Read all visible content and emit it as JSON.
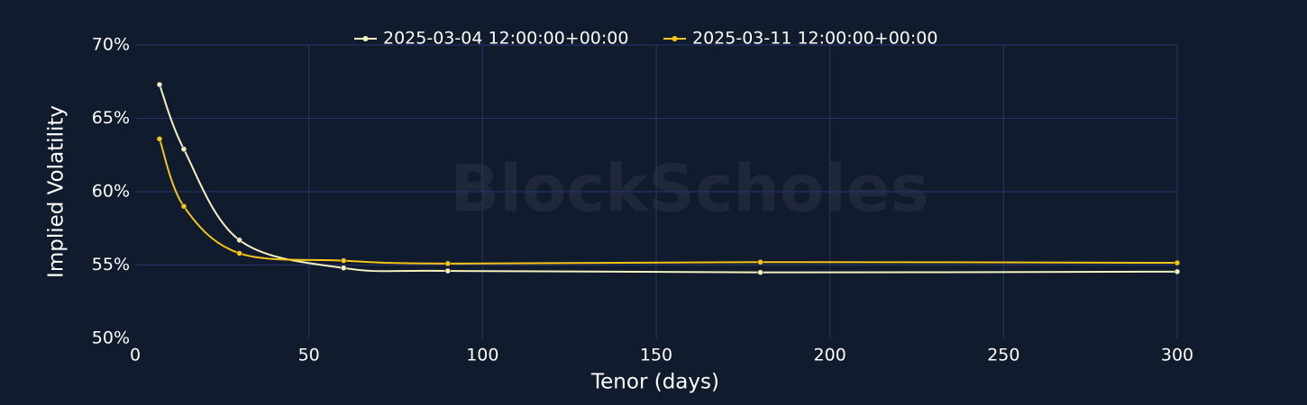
{
  "chart_data": {
    "type": "line",
    "watermark": "BlockScholes",
    "x_label": "Tenor (days)",
    "y_label": "Implied Volatility",
    "x": [
      7,
      14,
      30,
      60,
      90,
      180,
      300
    ],
    "series": [
      {
        "name": "2025-03-04 12:00:00+00:00",
        "color": "#f3f0c0",
        "values": [
          67.3,
          62.9,
          56.7,
          54.8,
          54.6,
          54.5,
          54.55
        ]
      },
      {
        "name": "2025-03-11 12:00:00+00:00",
        "color": "#f5c518",
        "values": [
          63.6,
          59.0,
          55.8,
          55.3,
          55.1,
          55.2,
          55.15
        ]
      }
    ],
    "xlim": [
      0,
      300
    ],
    "xticks": [
      0,
      50,
      100,
      150,
      200,
      250,
      300
    ],
    "ylim": [
      50,
      70
    ],
    "yticks": [
      {
        "value": 50,
        "label": "50%"
      },
      {
        "value": 55,
        "label": "55%"
      },
      {
        "value": 60,
        "label": "60%"
      },
      {
        "value": 65,
        "label": "65%"
      },
      {
        "value": 70,
        "label": "70%"
      }
    ],
    "grid": true,
    "legend": "top"
  }
}
